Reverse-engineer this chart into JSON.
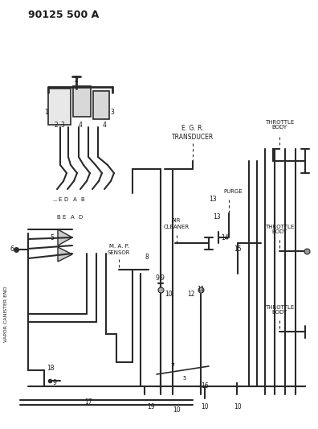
{
  "title": "90125 500 A",
  "bg_color": "#ffffff",
  "line_color": "#2a2a2a",
  "text_color": "#1a1a1a",
  "labels": {
    "egr": "E. G. R.\nTRANSDUCER",
    "throttle_body_1": "THROTTLE\nBODY",
    "throttle_body_2": "THROTTLE\nBODY",
    "throttle_body_3": "THROTTLE\nBODY",
    "air_cleaner": "AIR\nCLEANER",
    "purge": "PURGE",
    "map_sensor": "M. A. P.\nSENSOR",
    "vapor_canister": "VAPOR CANISTER END"
  },
  "part_numbers": [
    "1",
    "2",
    "3",
    "4",
    "5",
    "6",
    "7",
    "8",
    "9",
    "10",
    "11",
    "12",
    "13",
    "14",
    "15",
    "16",
    "17",
    "18",
    "19"
  ],
  "letter_labels": [
    "A",
    "B",
    "D",
    "E"
  ]
}
